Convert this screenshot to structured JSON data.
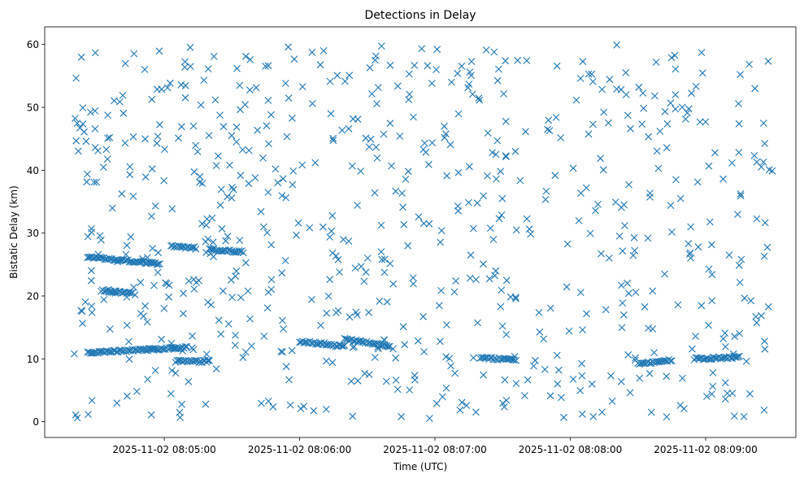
{
  "chart_data": {
    "type": "scatter",
    "title": "Detections in Delay",
    "xlabel": "Time (UTC)",
    "ylabel": "Bistatic Delay (km)",
    "x_start": "2025-11-02 08:04:20",
    "x_end": "2025-11-02 08:09:30",
    "xlim": [
      "2025-11-02 08:04:07",
      "2025-11-02 08:09:40"
    ],
    "ylim": [
      -2.5,
      62.8
    ],
    "x_ticks": [
      "2025-11-02 08:05:00",
      "2025-11-02 08:06:00",
      "2025-11-02 08:07:00",
      "2025-11-02 08:08:00",
      "2025-11-02 08:09:00"
    ],
    "y_ticks": [
      0,
      10,
      20,
      30,
      40,
      50,
      60
    ],
    "marker": "x",
    "marker_color": "#1f77b4",
    "grid": false,
    "tracks": [
      {
        "t_start": "2025-11-02 08:04:26",
        "t_end": "2025-11-02 08:04:58",
        "y_start": 26.2,
        "y_end": 25.1
      },
      {
        "t_start": "2025-11-02 08:04:32",
        "t_end": "2025-11-02 08:04:46",
        "y_start": 20.8,
        "y_end": 20.5
      },
      {
        "t_start": "2025-11-02 08:04:26",
        "t_end": "2025-11-02 08:05:10",
        "y_start": 11.0,
        "y_end": 11.8
      },
      {
        "t_start": "2025-11-02 08:05:03",
        "t_end": "2025-11-02 08:05:14",
        "y_start": 28.0,
        "y_end": 27.6
      },
      {
        "t_start": "2025-11-02 08:05:20",
        "t_end": "2025-11-02 08:05:35",
        "y_start": 27.4,
        "y_end": 27.0
      },
      {
        "t_start": "2025-11-02 08:05:05",
        "t_end": "2025-11-02 08:05:20",
        "y_start": 9.6,
        "y_end": 9.6
      },
      {
        "t_start": "2025-11-02 08:06:00",
        "t_end": "2025-11-02 08:06:20",
        "y_start": 12.8,
        "y_end": 12.0
      },
      {
        "t_start": "2025-11-02 08:06:20",
        "t_end": "2025-11-02 08:06:40",
        "y_start": 13.2,
        "y_end": 12.0
      },
      {
        "t_start": "2025-11-02 08:07:20",
        "t_end": "2025-11-02 08:07:35",
        "y_start": 10.2,
        "y_end": 9.8
      },
      {
        "t_start": "2025-11-02 08:08:30",
        "t_end": "2025-11-02 08:08:45",
        "y_start": 9.2,
        "y_end": 9.8
      },
      {
        "t_start": "2025-11-02 08:08:55",
        "t_end": "2025-11-02 08:09:15",
        "y_start": 10.0,
        "y_end": 10.3
      }
    ],
    "clutter_count": 720
  }
}
